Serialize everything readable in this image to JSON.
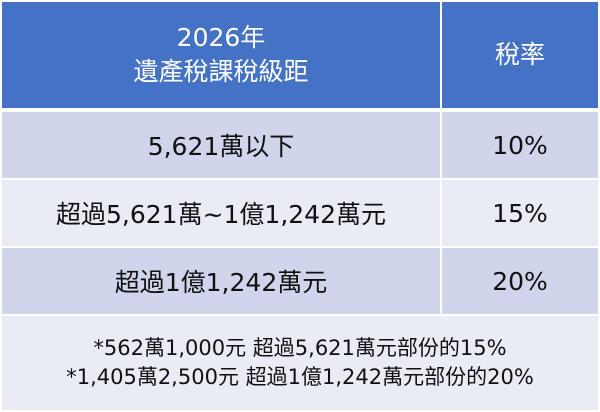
{
  "header": {
    "bracket_line1": "2026年",
    "bracket_line2": "遺產稅課稅級距",
    "rate": "稅率"
  },
  "rows": [
    {
      "bracket": "5,621萬以下",
      "rate": "10%"
    },
    {
      "bracket": "超過5,621萬~1億1,242萬元",
      "rate": "15%"
    },
    {
      "bracket": "超過1億1,242萬元",
      "rate": "20%"
    }
  ],
  "notes": [
    "*562萬1,000元 超過5,621萬元部份的15%",
    "*1,405萬2,500元 超過1億1,242萬元部份的20%"
  ],
  "colors": {
    "header": "#4472C4",
    "row_dark": "#CFD5EA",
    "row_light": "#E9EBF5"
  }
}
